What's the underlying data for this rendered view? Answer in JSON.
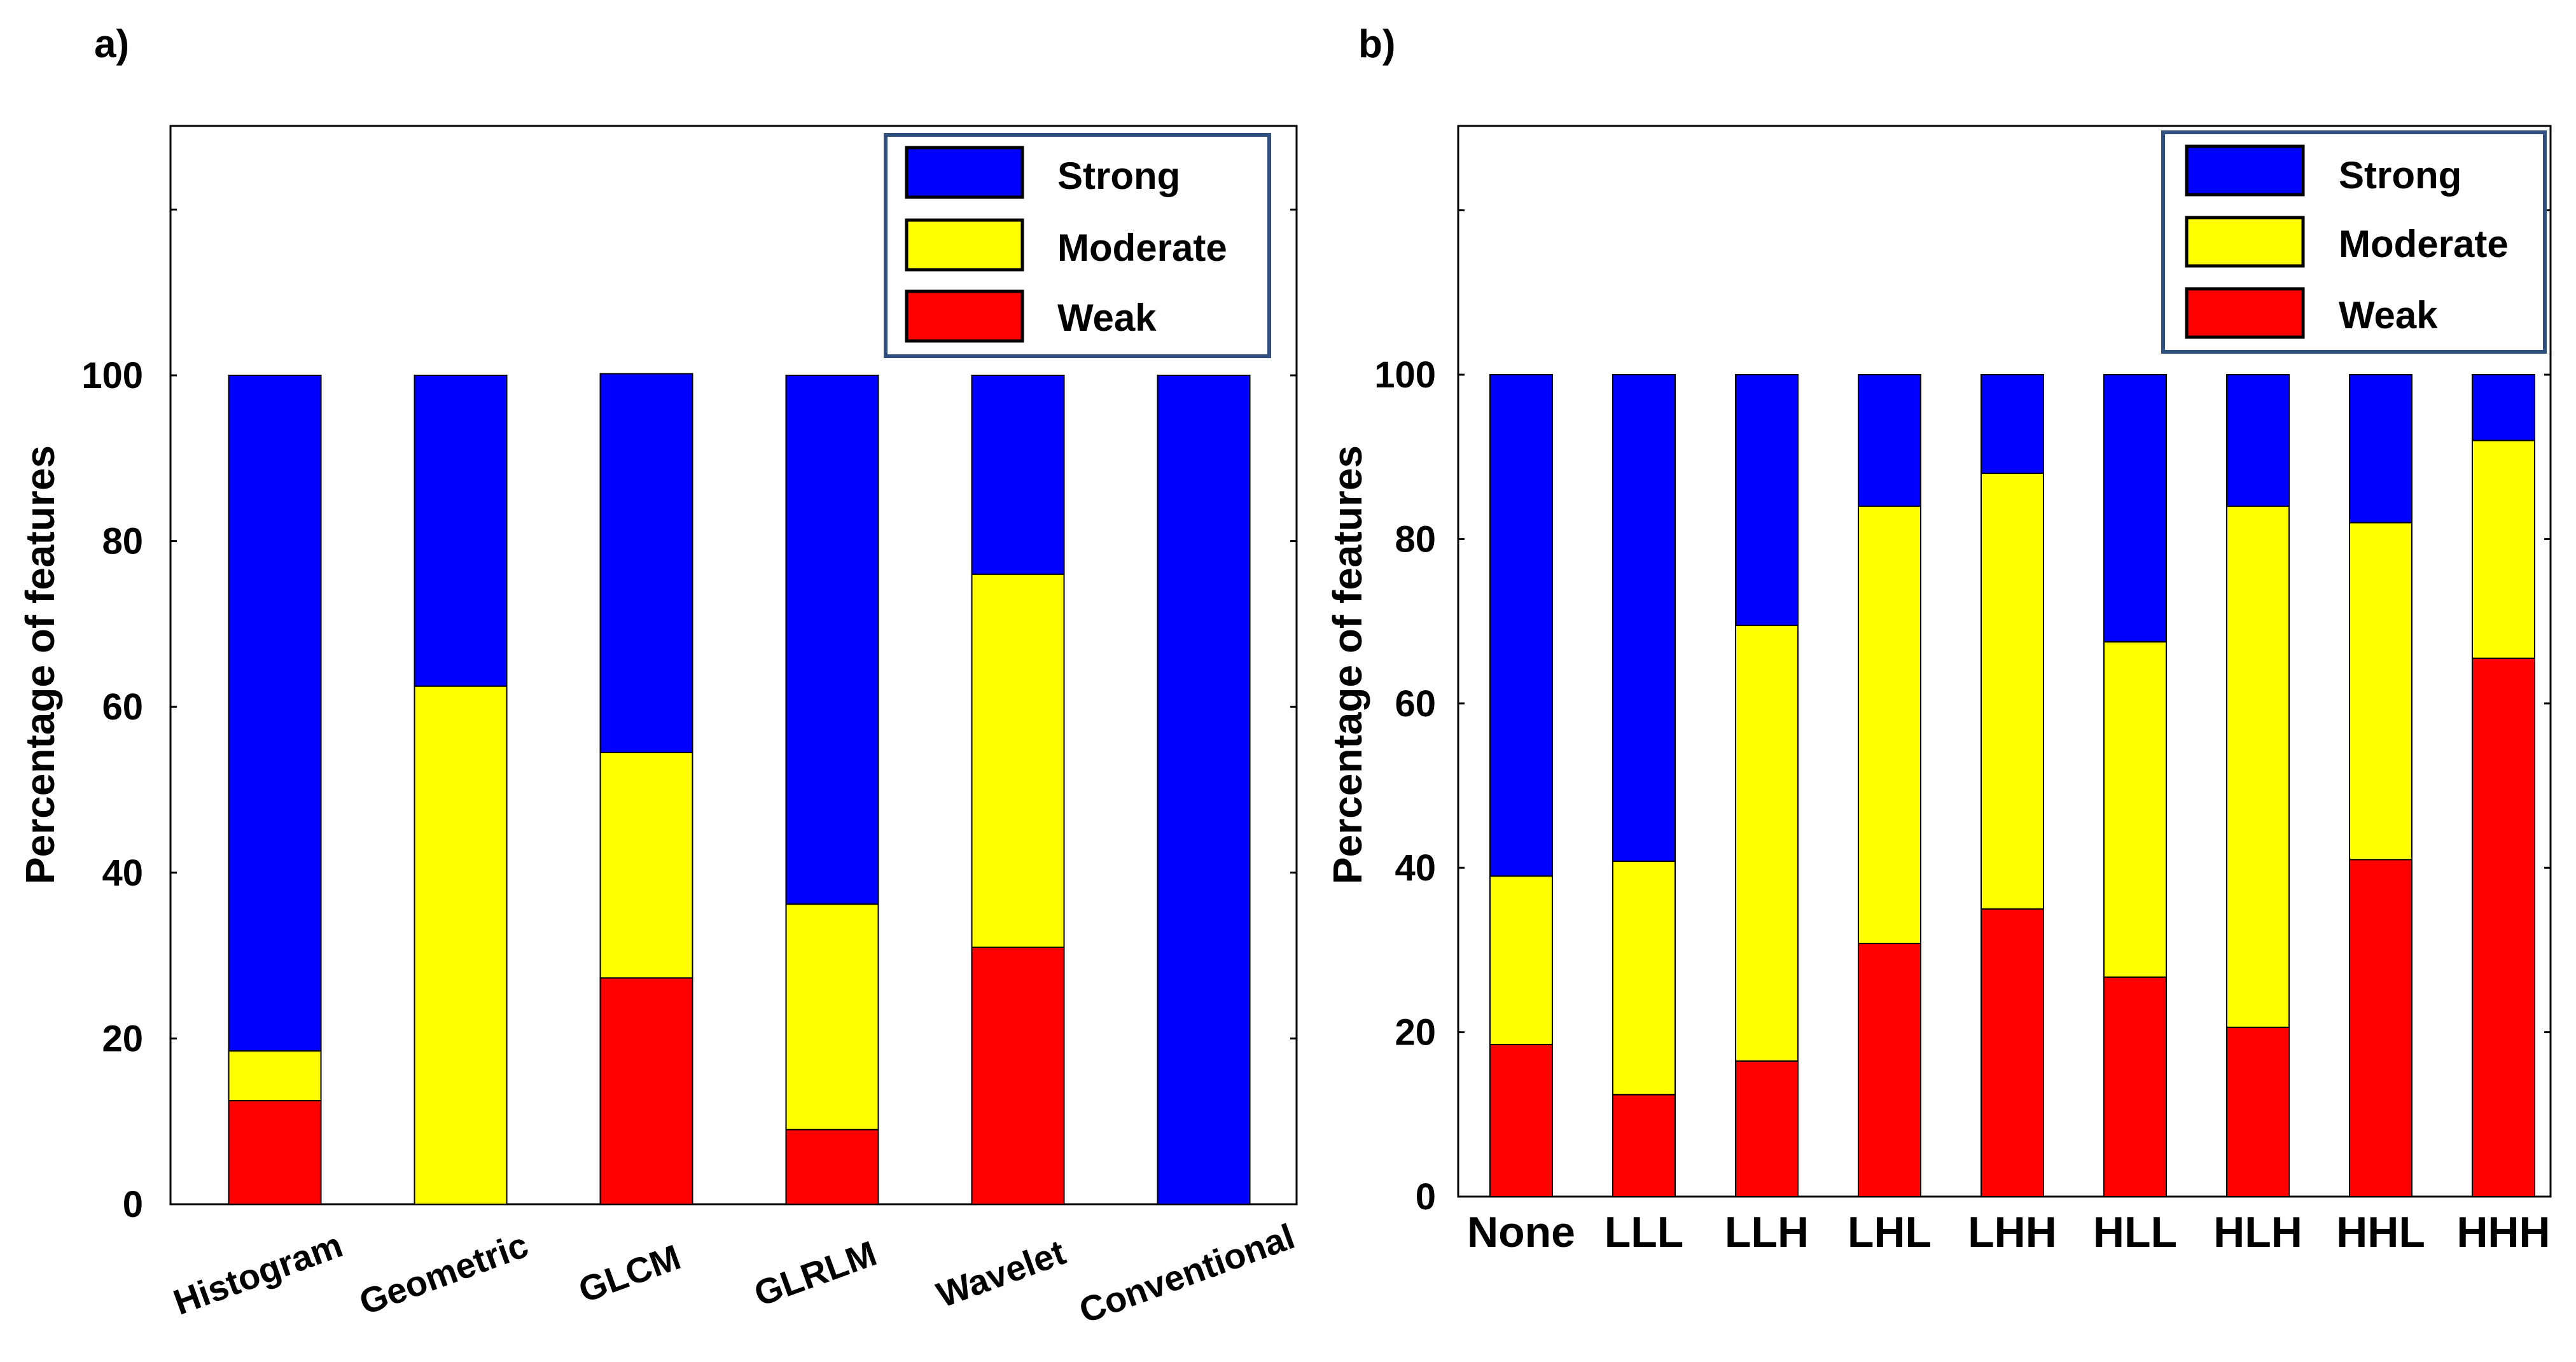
{
  "chart_data": [
    {
      "panel_label": "a)",
      "type": "bar",
      "stacked": true,
      "categories": [
        "Histogram",
        "Geometric",
        "GLCM",
        "GLRLM",
        "Wavelet",
        "Conventional"
      ],
      "series": [
        {
          "name": "Weak",
          "color": "#ff0000",
          "values": [
            12.5,
            0,
            27.3,
            9,
            31,
            0
          ]
        },
        {
          "name": "Moderate",
          "color": "#ffff00",
          "values": [
            6,
            62.5,
            27.2,
            27.2,
            45,
            0
          ]
        },
        {
          "name": "Strong",
          "color": "#0000ff",
          "values": [
            81.5,
            37.5,
            45.7,
            63.8,
            24,
            100
          ]
        }
      ],
      "legend_entries": [
        "Strong",
        "Moderate",
        "Weak"
      ],
      "legend_position": "top-right",
      "xlabel": "",
      "ylabel": "Percentage of features",
      "ylim": [
        0,
        130
      ],
      "yticks": [
        0,
        20,
        40,
        60,
        80,
        100
      ],
      "ytick_labels": [
        "0",
        "20",
        "40",
        "60",
        "80",
        "100"
      ],
      "extra_ticks": [
        120
      ],
      "category_label_rotation": -20
    },
    {
      "panel_label": "b)",
      "type": "bar",
      "stacked": true,
      "categories": [
        "None",
        "LLL",
        "LLH",
        "LHL",
        "LHH",
        "HLL",
        "HLH",
        "HHL",
        "HHH"
      ],
      "series": [
        {
          "name": "Weak",
          "color": "#ff0000",
          "values": [
            18.5,
            12.4,
            16.5,
            30.8,
            35,
            26.7,
            20.6,
            41,
            65.5
          ]
        },
        {
          "name": "Moderate",
          "color": "#ffff00",
          "values": [
            20.5,
            28.4,
            53,
            53.2,
            53,
            40.8,
            63.4,
            41,
            26.5
          ]
        },
        {
          "name": "Strong",
          "color": "#0000ff",
          "values": [
            61,
            59.2,
            30.5,
            16,
            12,
            32.5,
            16,
            18,
            8
          ]
        }
      ],
      "legend_entries": [
        "Strong",
        "Moderate",
        "Weak"
      ],
      "legend_position": "top-right",
      "xlabel": "",
      "ylabel": "Percentage of features",
      "ylim": [
        0,
        130
      ],
      "yticks": [
        0,
        20,
        40,
        60,
        80,
        100
      ],
      "ytick_labels": [
        "0",
        "20",
        "40",
        "60",
        "80",
        "100"
      ],
      "extra_ticks": [
        120
      ],
      "category_label_rotation": 0
    }
  ]
}
